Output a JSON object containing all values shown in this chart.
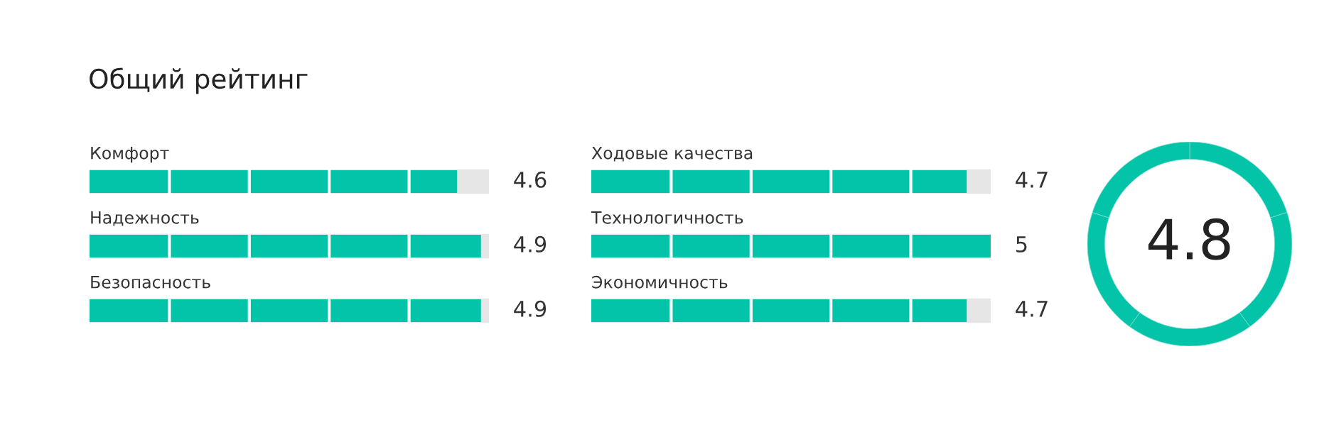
{
  "chart_data": [
    {
      "type": "bar",
      "orientation": "horizontal",
      "title": "Общий рейтинг",
      "categories": [
        "Комфорт",
        "Надежность",
        "Безопасность"
      ],
      "values": [
        4.6,
        4.9,
        4.9
      ],
      "color": "#03c4a9",
      "xlim": [
        0,
        5
      ],
      "data_labels": true
    },
    {
      "type": "bar",
      "orientation": "horizontal",
      "categories": [
        "Ходовые качества",
        "Технологичность",
        "Экономичность"
      ],
      "values": [
        4.7,
        5,
        4.7
      ],
      "color": "#03c4a9",
      "xlim": [
        0,
        5
      ],
      "data_labels": true
    },
    {
      "type": "other",
      "annotations": [
        "4.8"
      ],
      "color": "#03c4a9"
    }
  ]
}
